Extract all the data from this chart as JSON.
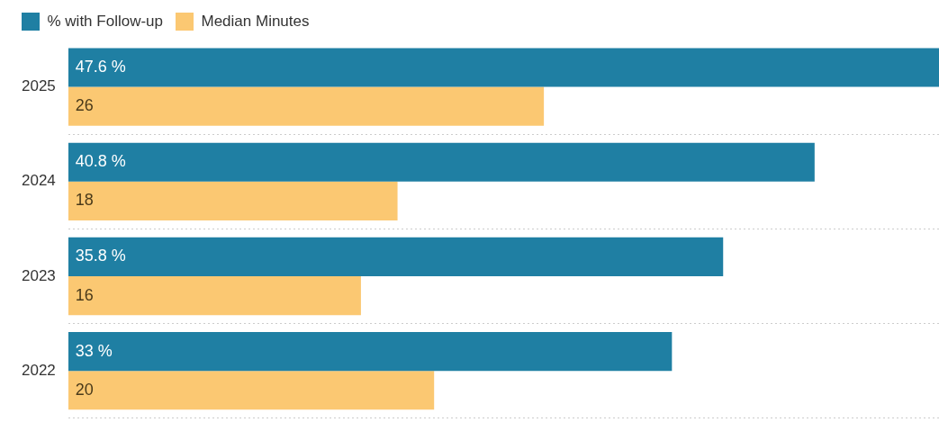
{
  "chart_data": {
    "type": "bar",
    "orientation": "horizontal",
    "categories": [
      "2025",
      "2024",
      "2023",
      "2022"
    ],
    "series": [
      {
        "name": "% with Follow-up",
        "color": "#1f7fa3",
        "values": [
          47.6,
          40.8,
          35.8,
          33
        ],
        "value_labels": [
          "47.6 %",
          "40.8 %",
          "35.8 %",
          "33 %"
        ]
      },
      {
        "name": "Median Minutes",
        "color": "#fbc872",
        "values": [
          26,
          18,
          16,
          20
        ],
        "value_labels": [
          "26",
          "18",
          "16",
          "20"
        ]
      }
    ],
    "grid": "y",
    "legend": "top left"
  }
}
